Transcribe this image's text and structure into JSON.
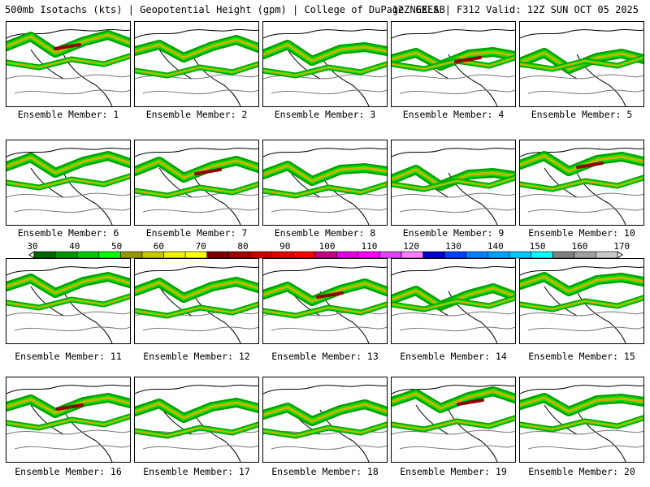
{
  "header": {
    "left": "500mb Isotachs (kts) | Geopotential Height (gpm) | College of DuPage NEXLAB",
    "right": "12Z GEFS | F312 Valid: 12Z SUN OCT 05 2025"
  },
  "members": [
    "Ensemble Member: 1",
    "Ensemble Member: 2",
    "Ensemble Member: 3",
    "Ensemble Member: 4",
    "Ensemble Member: 5",
    "Ensemble Member: 6",
    "Ensemble Member: 7",
    "Ensemble Member: 8",
    "Ensemble Member: 9",
    "Ensemble Member: 10",
    "Ensemble Member: 11",
    "Ensemble Member: 12",
    "Ensemble Member: 13",
    "Ensemble Member: 14",
    "Ensemble Member: 15",
    "Ensemble Member: 16",
    "Ensemble Member: 17",
    "Ensemble Member: 18",
    "Ensemble Member: 19",
    "Ensemble Member: 20"
  ],
  "colorbar": {
    "labels": [
      "30",
      "40",
      "50",
      "60",
      "70",
      "80",
      "90",
      "100",
      "110",
      "120",
      "130",
      "140",
      "150",
      "160",
      "170"
    ],
    "colors": [
      "#006400",
      "#009600",
      "#00c800",
      "#00ff00",
      "#969600",
      "#c8c800",
      "#f0f000",
      "#ffff00",
      "#800000",
      "#a00000",
      "#c80000",
      "#e60000",
      "#ff0000",
      "#c00080",
      "#e000e0",
      "#ff00ff",
      "#e040ff",
      "#ff80ff",
      "#0000c8",
      "#0040ff",
      "#0080ff",
      "#00a0ff",
      "#00c8ff",
      "#00ffff",
      "#808080",
      "#a0a0a0",
      "#c8c8c8"
    ]
  }
}
